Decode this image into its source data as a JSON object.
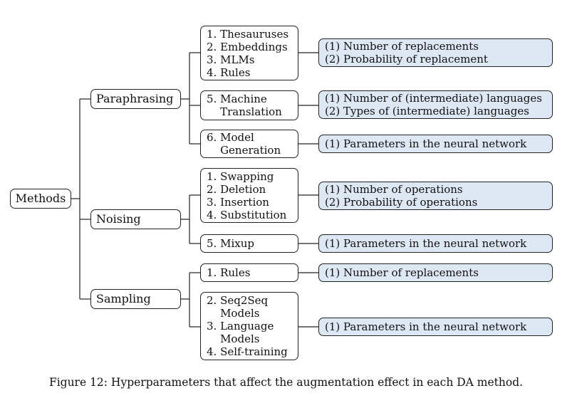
{
  "root": {
    "label": "Methods"
  },
  "categories": [
    {
      "label": "Paraphrasing"
    },
    {
      "label": "Noising"
    },
    {
      "label": "Sampling"
    }
  ],
  "methods": [
    {
      "lines": [
        "1. Thesauruses",
        "2. Embeddings",
        "3. MLMs",
        "4. Rules"
      ]
    },
    {
      "lines": [
        "5. Machine",
        "    Translation"
      ]
    },
    {
      "lines": [
        "6. Model",
        "    Generation"
      ]
    },
    {
      "lines": [
        "1. Swapping",
        "2. Deletion",
        "3. Insertion",
        "4. Substitution"
      ]
    },
    {
      "lines": [
        "5. Mixup"
      ]
    },
    {
      "lines": [
        "1. Rules"
      ]
    },
    {
      "lines": [
        "2. Seq2Seq",
        "    Models",
        "3. Language",
        "    Models",
        "4. Self-training"
      ]
    }
  ],
  "hyperparameters": [
    {
      "lines": [
        "(1) Number of replacements",
        "(2) Probability of replacement"
      ]
    },
    {
      "lines": [
        "(1) Number of (intermediate) languages",
        "(2) Types of (intermediate) languages"
      ]
    },
    {
      "lines": [
        "(1) Parameters in the neural network"
      ]
    },
    {
      "lines": [
        "(1) Number of operations",
        "(2) Probability of operations"
      ]
    },
    {
      "lines": [
        "(1) Parameters in the neural network"
      ]
    },
    {
      "lines": [
        "(1) Number of replacements"
      ]
    },
    {
      "lines": [
        "(1) Parameters in the neural network"
      ]
    }
  ],
  "caption": "Figure 12: Hyperparameters that affect the augmentation effect in each DA method.",
  "colors": {
    "hyperparameter_fill": "#dde8f4",
    "border": "#222222"
  }
}
